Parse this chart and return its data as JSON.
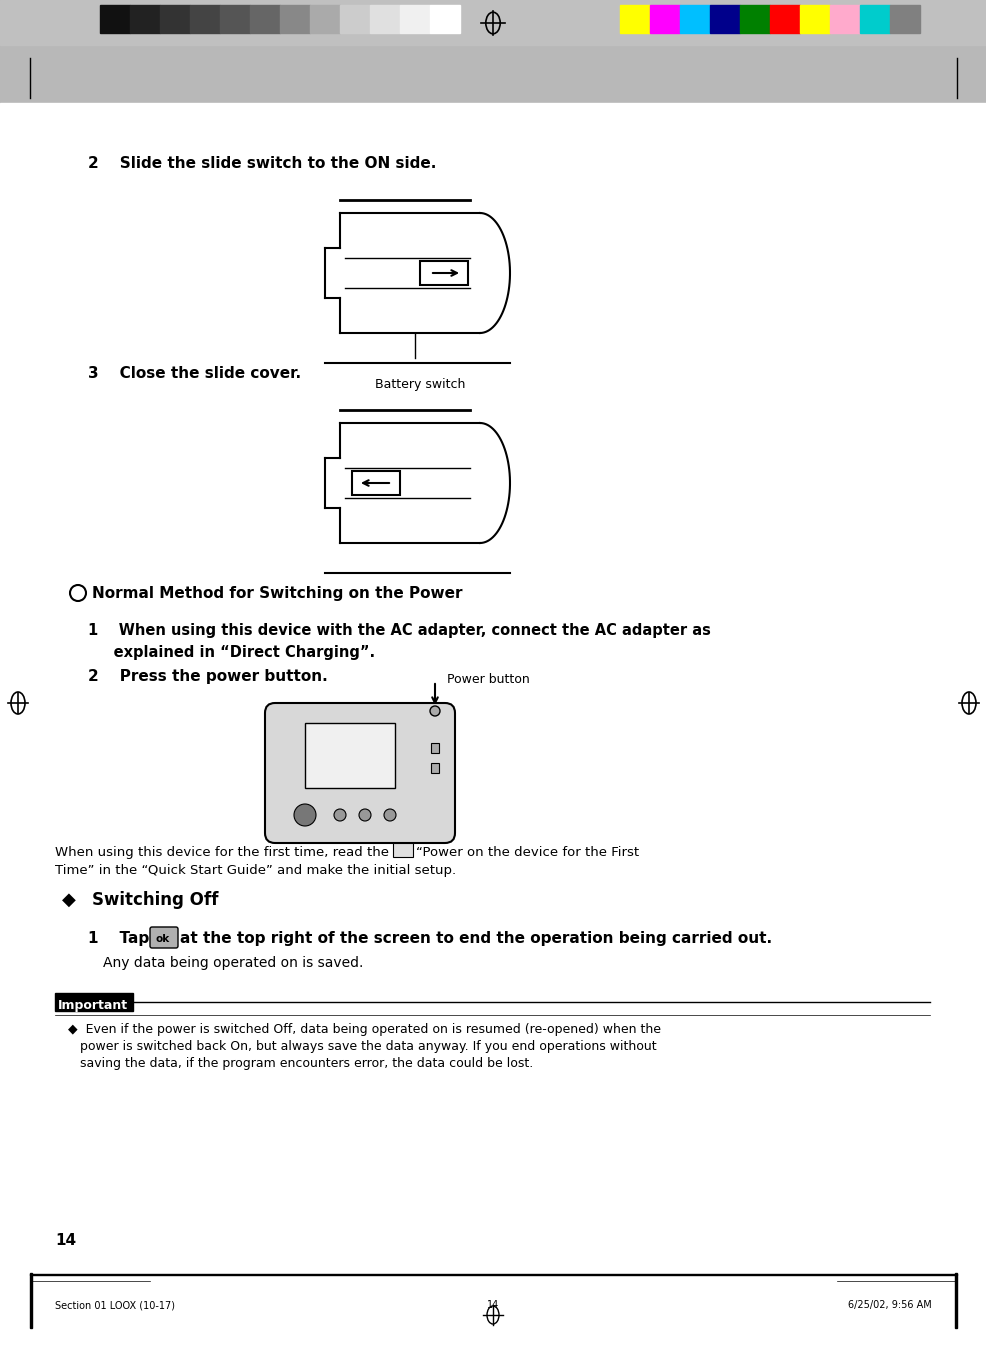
{
  "page_bg": "#ffffff",
  "page_number": "14",
  "footer_left": "Section 01 LOOX (10-17)",
  "footer_center": "14",
  "footer_right": "6/25/02, 9:56 AM",
  "step2_text": "2    Slide the slide switch to the ON side.",
  "step3_text": "3    Close the slide cover.",
  "normal_method_title": "Normal Method for Switching on the Power",
  "step_ac_line1": "1    When using this device with the AC adapter, connect the AC adapter as",
  "step_ac_line2": "     explained in “Direct Charging”.",
  "step_press": "2    Press the power button.",
  "first_time_line1": "When using this device for the first time, read the",
  "first_time_line1b": "“Power on the device for the First",
  "first_time_line2": "Time” in the “Quick Start Guide” and make the initial setup.",
  "switching_off_title": "Switching Off",
  "tap_line1_a": "1    Tap",
  "tap_line1_b": "at the top right of the screen to end the operation being carried out.",
  "any_data_text": "     Any data being operated on is saved.",
  "important_label": "Important",
  "imp_line1": "◆  Even if the power is switched Off, data being operated on is resumed (re-opened) when the",
  "imp_line2": "   power is switched back On, but always save the data anyway. If you end operations without",
  "imp_line3": "   saving the data, if the program encounters error, the data could be lost.",
  "battery_switch_label": "Battery switch",
  "power_button_label": "Power button",
  "colors_gray": [
    "#111111",
    "#222222",
    "#333333",
    "#444444",
    "#555555",
    "#666666",
    "#888888",
    "#aaaaaa",
    "#cccccc",
    "#e0e0e0",
    "#f0f0f0",
    "#ffffff"
  ],
  "colors_bright": [
    "#ffff00",
    "#ff00ff",
    "#00bfff",
    "#00008b",
    "#008000",
    "#ff0000",
    "#ffff00",
    "#ffaacc",
    "#00cccc",
    "#808080"
  ]
}
